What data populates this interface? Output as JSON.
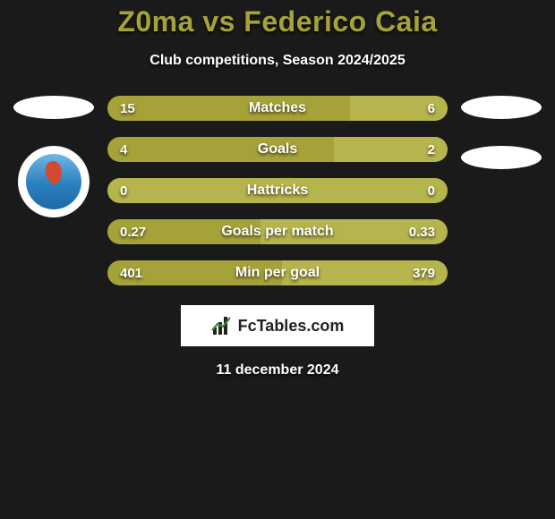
{
  "title": "Z0ma vs Federico Caia",
  "subtitle": "Club competitions, Season 2024/2025",
  "date": "11 december 2024",
  "colors": {
    "background": "#1a1a1a",
    "title": "#a5a23a",
    "bar_base": "#a5a23a",
    "bar_fill": "#b5b44d",
    "text": "#ffffff"
  },
  "logo": {
    "text": "FcTables.com",
    "icon": "bar-chart-icon"
  },
  "left": {
    "ellipse": true,
    "badge": true
  },
  "right": {
    "ellipses": 2
  },
  "bars": [
    {
      "label": "Matches",
      "left": "15",
      "right": "6",
      "right_fill_pct": 28.6
    },
    {
      "label": "Goals",
      "left": "4",
      "right": "2",
      "right_fill_pct": 33.3
    },
    {
      "label": "Hattricks",
      "left": "0",
      "right": "0",
      "right_fill_pct": 100,
      "full_light": true
    },
    {
      "label": "Goals per match",
      "left": "0.27",
      "right": "0.33",
      "right_fill_pct": 55.0
    },
    {
      "label": "Min per goal",
      "left": "401",
      "right": "379",
      "right_fill_pct": 48.6
    }
  ]
}
